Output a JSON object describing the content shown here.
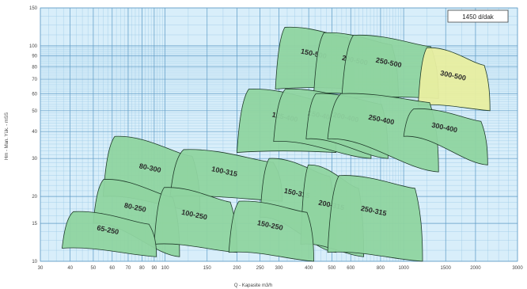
{
  "chart_data": {
    "type": "pump-selection-chart",
    "xlabel": "Q - Kapasite m3/h",
    "ylabel": "Hm - Man. Yük. - mSS",
    "speed_label": "1450 d/dak",
    "x_scale": "log",
    "y_scale": "log",
    "xlim": [
      30,
      3000
    ],
    "ylim": [
      10,
      150
    ],
    "grid": true,
    "x_ticks": [
      {
        "value": 30,
        "label": "30"
      },
      {
        "value": 40,
        "label": "40"
      },
      {
        "value": 50,
        "label": "50"
      },
      {
        "value": 60,
        "label": "60"
      },
      {
        "value": 70,
        "label": "70"
      },
      {
        "value": 80,
        "label": "80"
      },
      {
        "value": 90,
        "label": "90"
      },
      {
        "value": 100,
        "label": "100"
      },
      {
        "value": 150,
        "label": "150"
      },
      {
        "value": 200,
        "label": "200"
      },
      {
        "value": 250,
        "label": "250"
      },
      {
        "value": 300,
        "label": "300"
      },
      {
        "value": 400,
        "label": "400"
      },
      {
        "value": 500,
        "label": "500"
      },
      {
        "value": 600,
        "label": "600"
      },
      {
        "value": 800,
        "label": "800"
      },
      {
        "value": 1000,
        "label": "1000"
      },
      {
        "value": 1500,
        "label": "1500"
      },
      {
        "value": 2000,
        "label": "2000"
      },
      {
        "value": 3000,
        "label": "3000"
      }
    ],
    "y_ticks": [
      {
        "value": 10,
        "label": "10"
      },
      {
        "value": 15,
        "label": "15"
      },
      {
        "value": 20,
        "label": "20"
      },
      {
        "value": 30,
        "label": "30"
      },
      {
        "value": 40,
        "label": "40"
      },
      {
        "value": 50,
        "label": "50"
      },
      {
        "value": 60,
        "label": "60"
      },
      {
        "value": 70,
        "label": "70"
      },
      {
        "value": 80,
        "label": "80"
      },
      {
        "value": 90,
        "label": "90"
      },
      {
        "value": 100,
        "label": "100"
      },
      {
        "value": 150,
        "label": "150"
      }
    ],
    "regions": [
      {
        "label": "65-250",
        "q_min": 37,
        "q_max": 92,
        "h_min_left": 11.5,
        "h_max_left": 17,
        "h_max_right": 15,
        "h_min_right": 10.5,
        "color": "#8fd4a0"
      },
      {
        "label": "80-250",
        "q_min": 50,
        "q_max": 115,
        "h_min_left": 15,
        "h_max_left": 24,
        "h_max_right": 20,
        "h_min_right": 10.5,
        "color": "#8fd4a0"
      },
      {
        "label": "80-300",
        "q_min": 55,
        "q_max": 140,
        "h_min_left": 20,
        "h_max_left": 38,
        "h_max_right": 31,
        "h_min_right": 17,
        "color": "#8fd4a0"
      },
      {
        "label": "100-250",
        "q_min": 90,
        "q_max": 200,
        "h_min_left": 12,
        "h_max_left": 22,
        "h_max_right": 19,
        "h_min_right": 11,
        "color": "#8fd4a0"
      },
      {
        "label": "100-315",
        "q_min": 105,
        "q_max": 310,
        "h_min_left": 20,
        "h_max_left": 33,
        "h_max_right": 29,
        "h_min_right": 19,
        "color": "#8fd4a0"
      },
      {
        "label": "150-250",
        "q_min": 185,
        "q_max": 420,
        "h_min_left": 11,
        "h_max_left": 19,
        "h_max_right": 17,
        "h_min_right": 10,
        "color": "#8fd4a0"
      },
      {
        "label": "150-315",
        "q_min": 250,
        "q_max": 520,
        "h_min_left": 16,
        "h_max_left": 30,
        "h_max_right": 25,
        "h_min_right": 11,
        "color": "#8fd4a0"
      },
      {
        "label": "200-315",
        "q_min": 370,
        "q_max": 680,
        "h_min_left": 12,
        "h_max_left": 28,
        "h_max_right": 22,
        "h_min_right": 10.5,
        "color": "#8fd4a0"
      },
      {
        "label": "250-315",
        "q_min": 480,
        "q_max": 1200,
        "h_min_left": 11,
        "h_max_left": 25,
        "h_max_right": 22,
        "h_min_right": 10,
        "color": "#8fd4a0"
      },
      {
        "label": "125-400",
        "q_min": 200,
        "q_max": 520,
        "h_min_left": 32,
        "h_max_left": 63,
        "h_max_right": 55,
        "h_min_right": 32,
        "color": "#8fd4a0"
      },
      {
        "label": "150-400",
        "q_min": 285,
        "q_max": 730,
        "h_min_left": 36,
        "h_max_left": 63,
        "h_max_right": 56,
        "h_min_right": 30,
        "color": "#8fd4a0"
      },
      {
        "label": "200-400",
        "q_min": 390,
        "q_max": 860,
        "h_min_left": 37,
        "h_max_left": 60,
        "h_max_right": 54,
        "h_min_right": 30,
        "color": "#8fd4a0"
      },
      {
        "label": "250-400",
        "q_min": 480,
        "q_max": 1400,
        "h_min_left": 37,
        "h_max_left": 60,
        "h_max_right": 55,
        "h_min_right": 26,
        "color": "#8fd4a0"
      },
      {
        "label": "300-400",
        "q_min": 1000,
        "q_max": 2250,
        "h_min_left": 38,
        "h_max_left": 51,
        "h_max_right": 45,
        "h_min_right": 28,
        "color": "#8fd4a0"
      },
      {
        "label": "150-500",
        "q_min": 290,
        "q_max": 620,
        "h_min_left": 63,
        "h_max_left": 122,
        "h_max_right": 110,
        "h_min_right": 63,
        "color": "#8fd4a0"
      },
      {
        "label": "200-500",
        "q_min": 420,
        "q_max": 950,
        "h_min_left": 60,
        "h_max_left": 115,
        "h_max_right": 102,
        "h_min_right": 57,
        "color": "#8fd4a0"
      },
      {
        "label": "250-500",
        "q_min": 550,
        "q_max": 1400,
        "h_min_left": 57,
        "h_max_left": 112,
        "h_max_right": 100,
        "h_min_right": 57,
        "color": "#8fd4a0"
      },
      {
        "label": "300-500",
        "q_min": 1150,
        "q_max": 2300,
        "h_min_left": 53,
        "h_max_left": 98,
        "h_max_right": 82,
        "h_min_right": 50,
        "color": "#e8eea0"
      }
    ]
  }
}
